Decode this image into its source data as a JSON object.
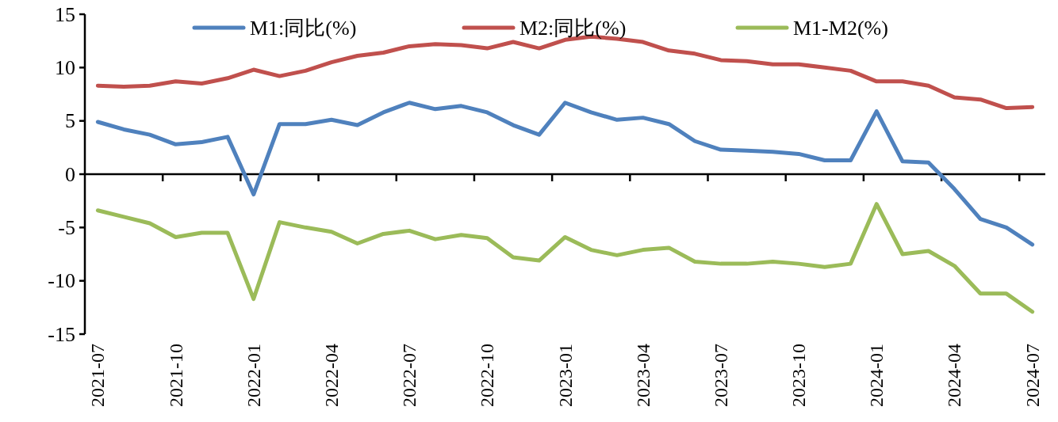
{
  "chart_data": {
    "type": "line",
    "categories": [
      "2021-07",
      null,
      null,
      "2021-10",
      null,
      null,
      "2022-01",
      null,
      null,
      "2022-04",
      null,
      null,
      "2022-07",
      null,
      null,
      "2022-10",
      null,
      null,
      "2023-01",
      null,
      null,
      "2023-04",
      null,
      null,
      "2023-07",
      null,
      null,
      "2023-10",
      null,
      null,
      "2024-01",
      null,
      null,
      "2024-04",
      null,
      null,
      "2024-07"
    ],
    "series": [
      {
        "name": "M1:同比(%)",
        "color": "#4f81bd",
        "values": [
          4.9,
          4.2,
          3.7,
          2.8,
          3.0,
          3.5,
          -1.9,
          4.7,
          4.7,
          5.1,
          4.6,
          5.8,
          6.7,
          6.1,
          6.4,
          5.8,
          4.6,
          3.7,
          6.7,
          5.8,
          5.1,
          5.3,
          4.7,
          3.1,
          2.3,
          2.2,
          2.1,
          1.9,
          1.3,
          1.3,
          5.9,
          1.2,
          1.1,
          -1.4,
          -4.2,
          -5.0,
          -6.6
        ]
      },
      {
        "name": "M2:同比(%)",
        "color": "#c0504d",
        "values": [
          8.3,
          8.2,
          8.3,
          8.7,
          8.5,
          9.0,
          9.8,
          9.2,
          9.7,
          10.5,
          11.1,
          11.4,
          12.0,
          12.2,
          12.1,
          11.8,
          12.4,
          11.8,
          12.6,
          12.9,
          12.7,
          12.4,
          11.6,
          11.3,
          10.7,
          10.6,
          10.3,
          10.3,
          10.0,
          9.7,
          8.7,
          8.7,
          8.3,
          7.2,
          7.0,
          6.2,
          6.3
        ]
      },
      {
        "name": "M1-M2(%)",
        "color": "#9bbb59",
        "values": [
          -3.4,
          -4.0,
          -4.6,
          -5.9,
          -5.5,
          -5.5,
          -11.7,
          -4.5,
          -5.0,
          -5.4,
          -6.5,
          -5.6,
          -5.3,
          -6.1,
          -5.7,
          -6.0,
          -7.8,
          -8.1,
          -5.9,
          -7.1,
          -7.6,
          -7.1,
          -6.9,
          -8.2,
          -8.4,
          -8.4,
          -8.2,
          -8.4,
          -8.7,
          -8.4,
          -2.8,
          -7.5,
          -7.2,
          -8.6,
          -11.2,
          -11.2,
          -12.9
        ]
      }
    ],
    "ylim": [
      -15,
      15
    ],
    "yticks": [
      -15,
      -10,
      -5,
      0,
      5,
      10,
      15
    ],
    "legend": "top",
    "marker": "none",
    "line_style": "solid"
  }
}
